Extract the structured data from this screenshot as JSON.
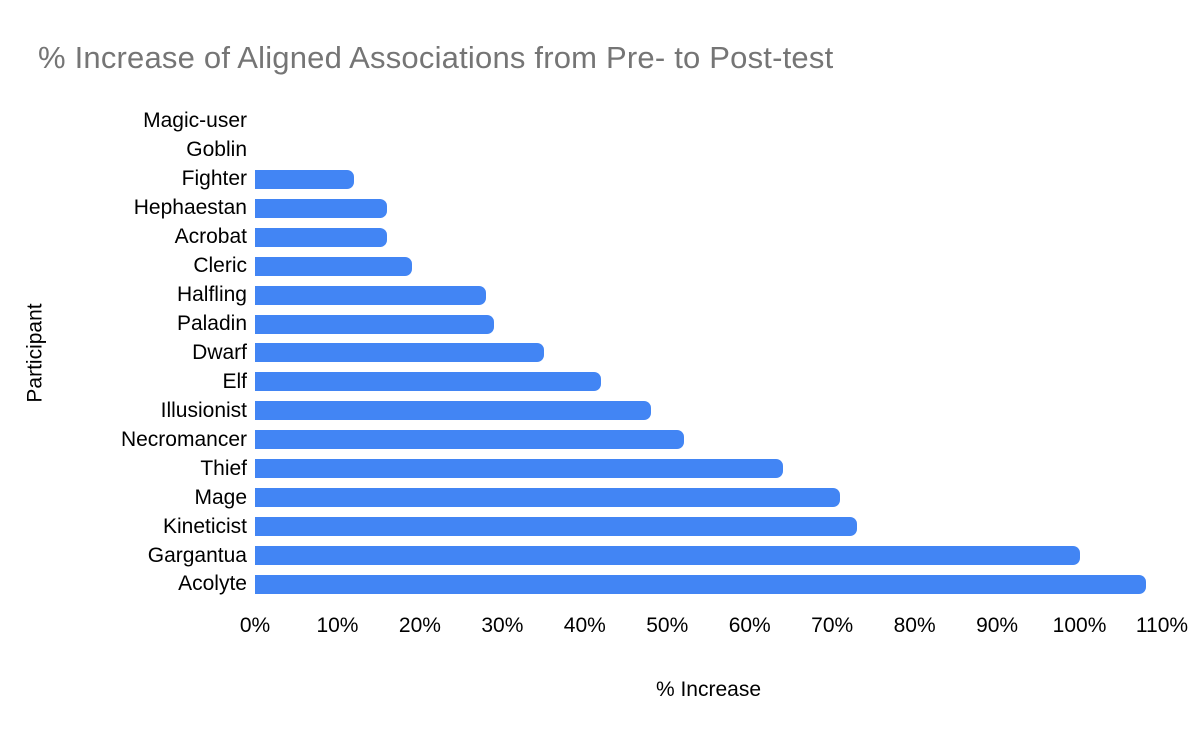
{
  "chart_data": {
    "type": "bar",
    "orientation": "horizontal",
    "title": "% Increase of Aligned Associations from Pre- to Post-test",
    "xlabel": "% Increase",
    "ylabel": "Participant",
    "categories": [
      "Magic-user",
      "Goblin",
      "Fighter",
      "Hephaestan",
      "Acrobat",
      "Cleric",
      "Halfling",
      "Paladin",
      "Dwarf",
      "Elf",
      "Illusionist",
      "Necromancer",
      "Thief",
      "Mage",
      "Kineticist",
      "Gargantua",
      "Acolyte"
    ],
    "values": [
      0,
      0,
      12,
      16,
      16,
      19,
      28,
      29,
      35,
      42,
      48,
      52,
      64,
      71,
      73,
      100,
      108
    ],
    "xlim": [
      0,
      110
    ],
    "x_tick_labels": [
      "0%",
      "10%",
      "20%",
      "30%",
      "40%",
      "50%",
      "60%",
      "70%",
      "80%",
      "90%",
      "100%",
      "110%"
    ],
    "grid": false,
    "legend": false,
    "bar_color": "#4285f4",
    "title_color": "#757575",
    "axis_text_color": "#000000",
    "background_color": "#ffffff"
  }
}
